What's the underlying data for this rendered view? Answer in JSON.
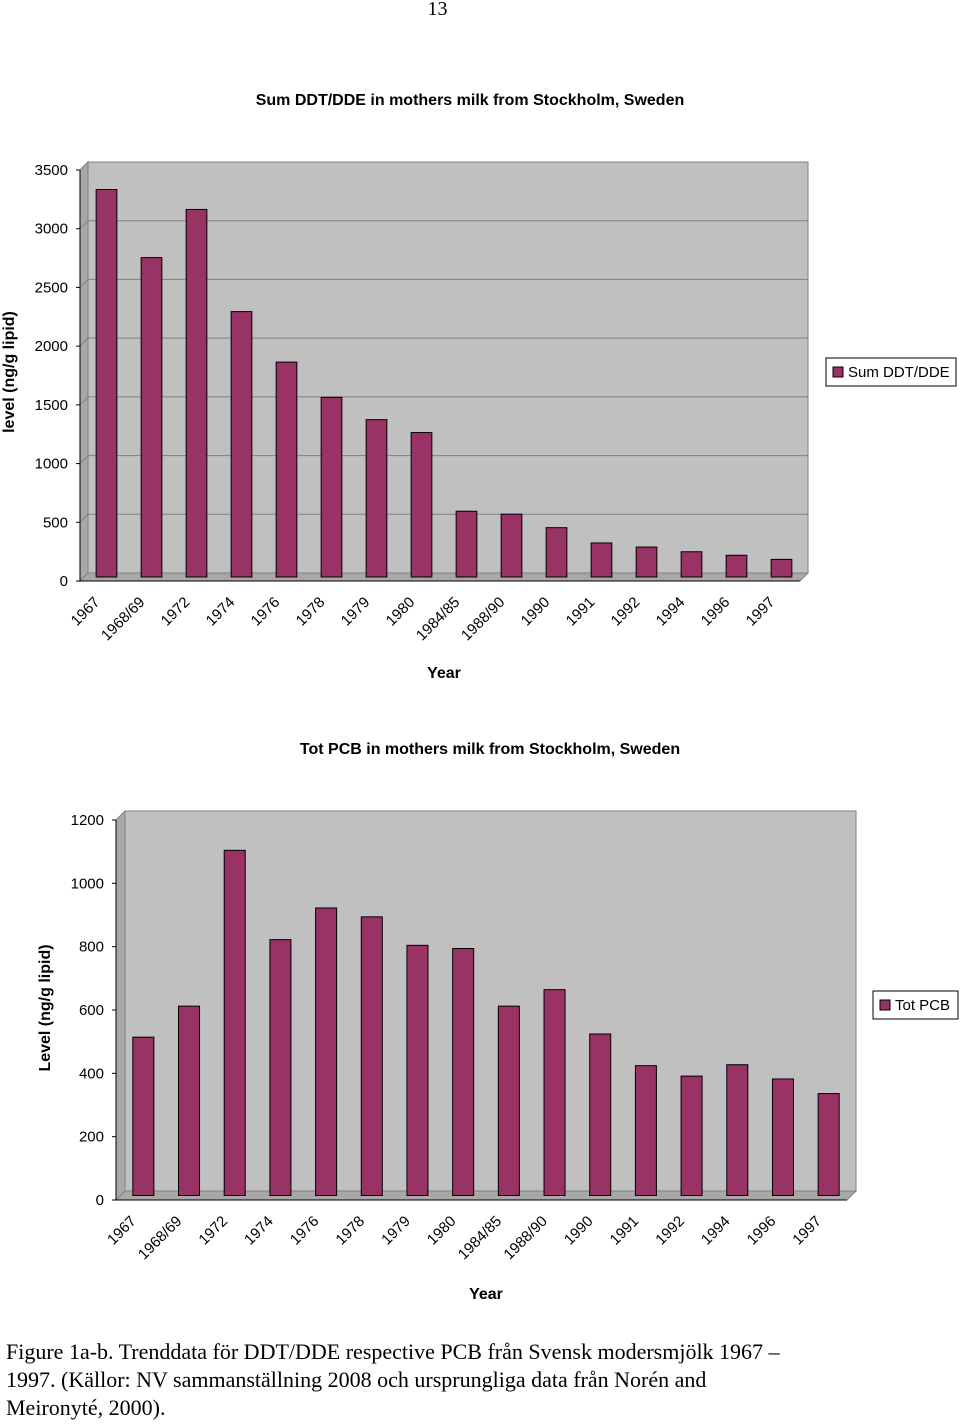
{
  "page_number": "13",
  "caption": {
    "line1": "Figure 1a-b. Trenddata för DDT/DDE respective PCB från Svensk modersmjölk 1967 –",
    "line2": "1997. (Källor: NV sammanställning 2008 och ursprungliga data från Norén and",
    "line3": "Meironyté, 2000)."
  },
  "chart_data": [
    {
      "type": "bar",
      "title": "Sum DDT/DDE in mothers milk from Stockholm, Sweden",
      "xlabel": "Year",
      "ylabel": "level (ng/g lipid)",
      "categories": [
        "1967",
        "1968/69",
        "1972",
        "1974",
        "1976",
        "1978",
        "1979",
        "1980",
        "1984/85",
        "1988/90",
        "1990",
        "1991",
        "1992",
        "1994",
        "1996",
        "1997"
      ],
      "series": [
        {
          "name": "Sum DDT/DDE",
          "values": [
            3300,
            2720,
            3130,
            2260,
            1830,
            1530,
            1340,
            1230,
            560,
            535,
            420,
            290,
            255,
            215,
            185,
            150
          ]
        }
      ],
      "ylim": [
        0,
        3500
      ],
      "yticks": [
        0,
        500,
        1000,
        1500,
        2000,
        2500,
        3000,
        3500
      ],
      "grid": true,
      "legend": "right",
      "colors": {
        "bar": "#993366",
        "plot_bg": "#c0c0c0",
        "grid": "#808080"
      }
    },
    {
      "type": "bar",
      "title": "Tot PCB in mothers milk from Stockholm, Sweden",
      "xlabel": "Year",
      "ylabel": "Level (ng/g lipid)",
      "categories": [
        "1967",
        "1968/69",
        "1972",
        "1974",
        "1976",
        "1978",
        "1979",
        "1980",
        "1984/85",
        "1988/90",
        "1990",
        "1991",
        "1992",
        "1994",
        "1996",
        "1997"
      ],
      "series": [
        {
          "name": "Tot PCB",
          "values": [
            500,
            598,
            1090,
            808,
            908,
            880,
            790,
            780,
            598,
            650,
            510,
            410,
            377,
            413,
            368,
            322
          ]
        }
      ],
      "ylim": [
        0,
        1200
      ],
      "yticks": [
        0,
        200,
        400,
        600,
        800,
        1000,
        1200
      ],
      "grid": false,
      "legend": "right",
      "colors": {
        "bar": "#993366",
        "plot_bg": "#c0c0c0",
        "grid": "#808080"
      }
    }
  ]
}
